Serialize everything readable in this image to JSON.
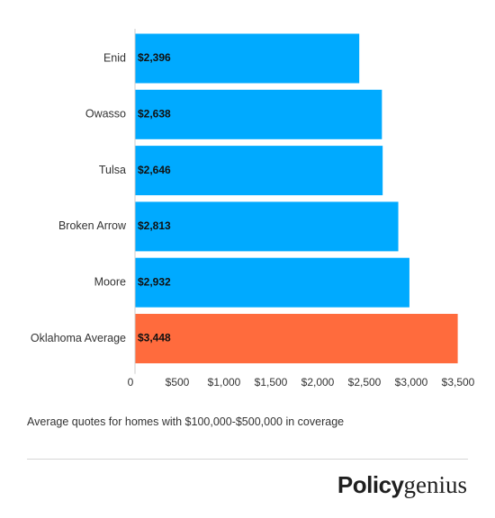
{
  "chart_data": {
    "type": "bar",
    "orientation": "horizontal",
    "categories": [
      "Enid",
      "Owasso",
      "Tulsa",
      "Broken Arrow",
      "Moore",
      "Oklahoma Average"
    ],
    "values": [
      2396,
      2638,
      2646,
      2813,
      2932,
      3448
    ],
    "value_labels": [
      "$2,396",
      "$2,638",
      "$2,646",
      "$2,813",
      "$2,932",
      "$3,448"
    ],
    "bar_colors": [
      "#00aaff",
      "#00aaff",
      "#00aaff",
      "#00aaff",
      "#00aaff",
      "#ff6b3d"
    ],
    "xlim": [
      0,
      3500
    ],
    "x_ticks": [
      0,
      500,
      1000,
      1500,
      2000,
      2500,
      3000,
      3500
    ],
    "x_tick_labels": [
      "0",
      "$500",
      "$1,000",
      "$1,500",
      "$2,000",
      "$2,500",
      "$3,000",
      "$3,500"
    ],
    "grid": false,
    "legend": "none",
    "caption": "Average quotes for homes with $100,000-$500,000 in coverage"
  },
  "brand": {
    "logo_bold": "Policy",
    "logo_serif": "genius"
  }
}
